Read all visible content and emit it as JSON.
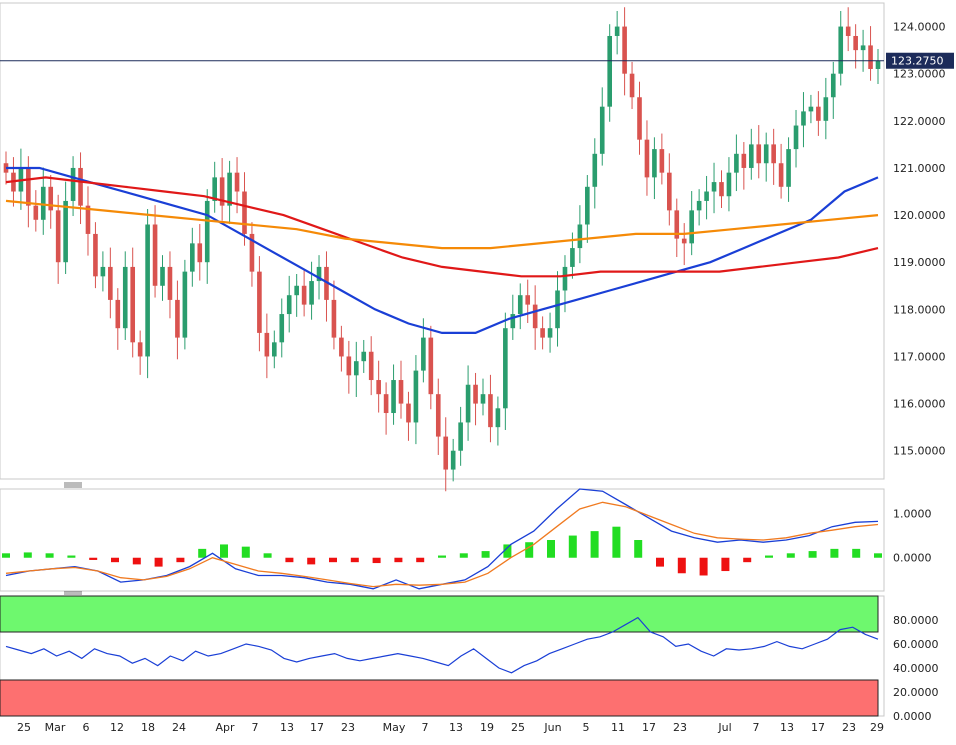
{
  "chart_data": {
    "type": "candlestick",
    "instrument": "",
    "price_label": "123.2750",
    "last_price": 123.275,
    "x_labels": [
      "25",
      "Mar",
      "6",
      "12",
      "18",
      "24",
      "Apr",
      "7",
      "13",
      "17",
      "23",
      "May",
      "7",
      "13",
      "19",
      "25",
      "Jun",
      "5",
      "11",
      "17",
      "23",
      "Jul",
      "7",
      "13",
      "17",
      "23",
      "29"
    ],
    "price_axis": {
      "ylim": [
        114.4,
        124.5
      ],
      "ticks": [
        "124.0000",
        "123.0000",
        "122.0000",
        "121.0000",
        "120.0000",
        "119.0000",
        "118.0000",
        "117.0000",
        "116.0000",
        "115.0000"
      ],
      "tick_values": [
        124,
        123,
        122,
        121,
        120,
        119,
        118,
        117,
        116,
        115
      ]
    },
    "candles_close": [
      120.9,
      120.5,
      121.0,
      120.2,
      119.9,
      120.6,
      120.1,
      119.0,
      120.3,
      121.0,
      120.2,
      119.6,
      118.7,
      118.9,
      118.2,
      117.6,
      118.9,
      117.3,
      117.0,
      119.8,
      118.5,
      118.9,
      118.2,
      117.4,
      118.8,
      119.4,
      119.0,
      120.3,
      120.8,
      120.2,
      120.9,
      120.5,
      119.6,
      118.8,
      117.5,
      117.0,
      117.3,
      117.9,
      118.3,
      118.5,
      118.1,
      118.6,
      118.9,
      118.2,
      117.4,
      117.0,
      116.6,
      116.9,
      117.1,
      116.5,
      116.2,
      115.8,
      116.5,
      116.0,
      115.6,
      116.7,
      117.4,
      116.2,
      115.3,
      114.6,
      115.0,
      115.6,
      116.4,
      116.0,
      116.2,
      115.5,
      115.9,
      117.6,
      117.9,
      118.3,
      118.1,
      117.6,
      117.4,
      117.6,
      118.4,
      118.9,
      119.3,
      119.8,
      120.6,
      121.3,
      122.3,
      123.8,
      124.0,
      123.0,
      122.5,
      121.6,
      120.8,
      121.4,
      120.9,
      120.1,
      119.5,
      119.4,
      120.1,
      120.3,
      120.5,
      120.7,
      120.4,
      120.9,
      121.3,
      121.0,
      121.5,
      121.1,
      121.5,
      121.1,
      120.6,
      121.4,
      121.9,
      122.2,
      122.3,
      122.0,
      122.5,
      123.0,
      124.0,
      123.8,
      123.5,
      123.6,
      123.1,
      123.275
    ],
    "series": [
      {
        "name": "",
        "color": "#1a3fd6",
        "values": [
          121.0,
          121.0,
          120.8,
          120.6,
          120.4,
          120.2,
          120.0,
          119.6,
          119.2,
          118.8,
          118.4,
          118.0,
          117.7,
          117.5,
          117.5,
          117.8,
          118.0,
          118.2,
          118.4,
          118.6,
          118.8,
          119.0,
          119.3,
          119.6,
          119.9,
          120.5,
          120.8
        ]
      },
      {
        "name": "",
        "color": "#e01818",
        "values": [
          120.7,
          120.8,
          120.7,
          120.6,
          120.5,
          120.4,
          120.2,
          120.0,
          119.7,
          119.4,
          119.1,
          118.9,
          118.8,
          118.7,
          118.7,
          118.8,
          118.8,
          118.8,
          118.8,
          118.9,
          119.0,
          119.1,
          119.3
        ]
      },
      {
        "name": "",
        "color": "#f58a07",
        "values": [
          120.3,
          120.2,
          120.1,
          120.0,
          119.9,
          119.8,
          119.7,
          119.5,
          119.4,
          119.3,
          119.3,
          119.4,
          119.5,
          119.6,
          119.6,
          119.7,
          119.8,
          119.9,
          120.0
        ]
      }
    ],
    "macd": {
      "ylim": [
        -0.75,
        1.55
      ],
      "ticks": [
        "1.0000",
        "0.0000"
      ],
      "tick_values": [
        1.0,
        0.0
      ],
      "macd_line": [
        -0.4,
        -0.3,
        -0.25,
        -0.2,
        -0.3,
        -0.55,
        -0.5,
        -0.4,
        -0.2,
        0.1,
        -0.25,
        -0.4,
        -0.4,
        -0.45,
        -0.55,
        -0.6,
        -0.7,
        -0.5,
        -0.7,
        -0.6,
        -0.5,
        -0.2,
        0.3,
        0.6,
        1.1,
        1.55,
        1.5,
        1.2,
        0.9,
        0.6,
        0.45,
        0.35,
        0.4,
        0.35,
        0.4,
        0.5,
        0.7,
        0.8,
        0.82
      ],
      "signal_line": [
        -0.35,
        -0.3,
        -0.25,
        -0.22,
        -0.3,
        -0.45,
        -0.5,
        -0.42,
        -0.25,
        0.0,
        -0.15,
        -0.3,
        -0.35,
        -0.42,
        -0.5,
        -0.58,
        -0.65,
        -0.6,
        -0.62,
        -0.6,
        -0.55,
        -0.35,
        0.0,
        0.3,
        0.7,
        1.1,
        1.25,
        1.15,
        0.95,
        0.75,
        0.55,
        0.45,
        0.42,
        0.4,
        0.45,
        0.55,
        0.62,
        0.7,
        0.75
      ],
      "histogram": [
        0.1,
        0.12,
        0.1,
        0.05,
        -0.05,
        -0.1,
        -0.15,
        -0.2,
        -0.1,
        0.2,
        0.3,
        0.25,
        0.1,
        -0.1,
        -0.15,
        -0.1,
        -0.1,
        -0.12,
        -0.1,
        -0.1,
        0.05,
        0.1,
        0.15,
        0.3,
        0.35,
        0.4,
        0.5,
        0.6,
        0.7,
        0.4,
        -0.2,
        -0.35,
        -0.4,
        -0.3,
        -0.1,
        0.05,
        0.1,
        0.15,
        0.2,
        0.2,
        0.1
      ]
    },
    "rsi": {
      "ylim": [
        0,
        100
      ],
      "ticks": [
        "80.0000",
        "60.0000",
        "40.0000",
        "20.0000",
        "0.0000"
      ],
      "tick_values": [
        80,
        60,
        40,
        20,
        0
      ],
      "overbought": 70,
      "oversold": 30,
      "values": [
        58,
        55,
        52,
        56,
        50,
        54,
        48,
        56,
        52,
        50,
        44,
        48,
        42,
        50,
        46,
        54,
        50,
        52,
        56,
        60,
        58,
        55,
        48,
        45,
        48,
        50,
        52,
        48,
        46,
        48,
        50,
        52,
        50,
        48,
        45,
        42,
        50,
        56,
        48,
        40,
        36,
        42,
        46,
        52,
        56,
        60,
        64,
        66,
        70,
        76,
        82,
        70,
        66,
        58,
        60,
        54,
        50,
        56,
        55,
        56,
        58,
        62,
        58,
        56,
        60,
        64,
        72,
        74,
        68,
        64
      ]
    }
  }
}
